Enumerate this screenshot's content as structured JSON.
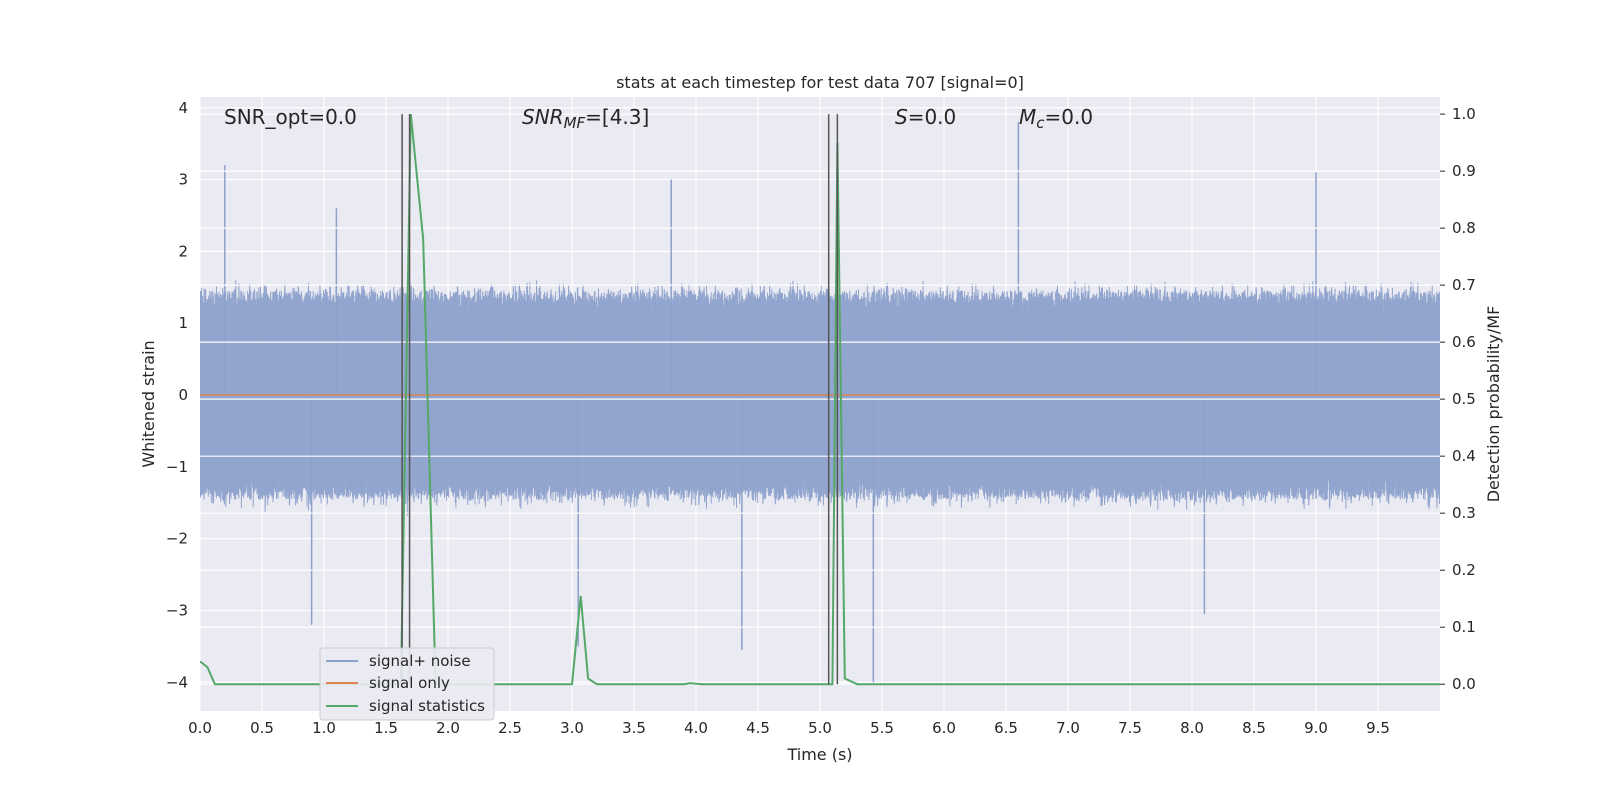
{
  "chart_data": {
    "type": "line",
    "title": "stats at each timestep for test data 707 [signal=0]",
    "xlabel": "Time (s)",
    "ylabel_left": "Whitened strain",
    "ylabel_right": "Detection probability/MF",
    "xlim": [
      0,
      10
    ],
    "ylim_left": [
      -4.4,
      4.15
    ],
    "ylim_right": [
      -0.047,
      1.03
    ],
    "x_ticks": [
      "0.0",
      "0.5",
      "1.0",
      "1.5",
      "2.0",
      "2.5",
      "3.0",
      "3.5",
      "4.0",
      "4.5",
      "5.0",
      "5.5",
      "6.0",
      "6.5",
      "7.0",
      "7.5",
      "8.0",
      "8.5",
      "9.0",
      "9.5"
    ],
    "y_ticks_left": [
      "−4",
      "−3",
      "−2",
      "−1",
      "0",
      "1",
      "2",
      "3",
      "4"
    ],
    "y_ticks_right": [
      "0.0",
      "0.1",
      "0.2",
      "0.3",
      "0.4",
      "0.5",
      "0.6",
      "0.7",
      "0.8",
      "0.9",
      "1.0"
    ],
    "grid": true,
    "legend_position": "lower-left",
    "colors": {
      "noise": "#8da1cb",
      "signal": "#dd8452",
      "stats": "#55a868",
      "marker": "#555555",
      "background": "#eaeaf2"
    },
    "annotations": {
      "snr_opt": "SNR_opt=0.0",
      "snr_mf_base": "SNR",
      "snr_mf_sub": "MF",
      "snr_mf_value": "=[4.3]",
      "s_label": "S",
      "s_value": "=0.0",
      "mc_base": "M",
      "mc_sub": "c",
      "mc_value": "=0.0"
    },
    "series": [
      {
        "name": "signal+ noise",
        "axis": "left",
        "style": "dense-noise",
        "x_range": [
          0,
          10
        ],
        "amplitude_core": 1.4,
        "spikes": [
          [
            0.2,
            3.2
          ],
          [
            1.1,
            2.6
          ],
          [
            3.8,
            3.0
          ],
          [
            6.6,
            3.8
          ],
          [
            9.0,
            3.1
          ],
          [
            0.9,
            -3.2
          ],
          [
            3.05,
            -3.5
          ],
          [
            4.37,
            -3.55
          ],
          [
            5.43,
            -4.0
          ],
          [
            8.1,
            -3.05
          ]
        ]
      },
      {
        "name": "signal only",
        "axis": "left",
        "x": [
          0,
          10
        ],
        "y": [
          0,
          0
        ]
      },
      {
        "name": "signal statistics",
        "axis": "right",
        "x": [
          0.0,
          0.06,
          0.12,
          0.2,
          1.5,
          1.62,
          1.7,
          1.8,
          1.9,
          1.95,
          2.0,
          2.9,
          3.0,
          3.07,
          3.13,
          3.2,
          3.9,
          3.95,
          4.05,
          5.05,
          5.1,
          5.14,
          5.2,
          5.3,
          6.0,
          10.0
        ],
        "y": [
          0.04,
          0.03,
          0.0,
          0.0,
          0.0,
          0.0,
          1.0,
          0.78,
          0.0,
          0.0,
          0.0,
          0.0,
          0.0,
          0.155,
          0.01,
          0.0,
          0.0,
          0.002,
          0.0,
          0.0,
          0.0,
          0.95,
          0.01,
          0.0,
          0.0,
          0.0
        ]
      }
    ],
    "marker_lines_x": [
      1.63,
      1.69,
      5.07,
      5.14
    ]
  }
}
